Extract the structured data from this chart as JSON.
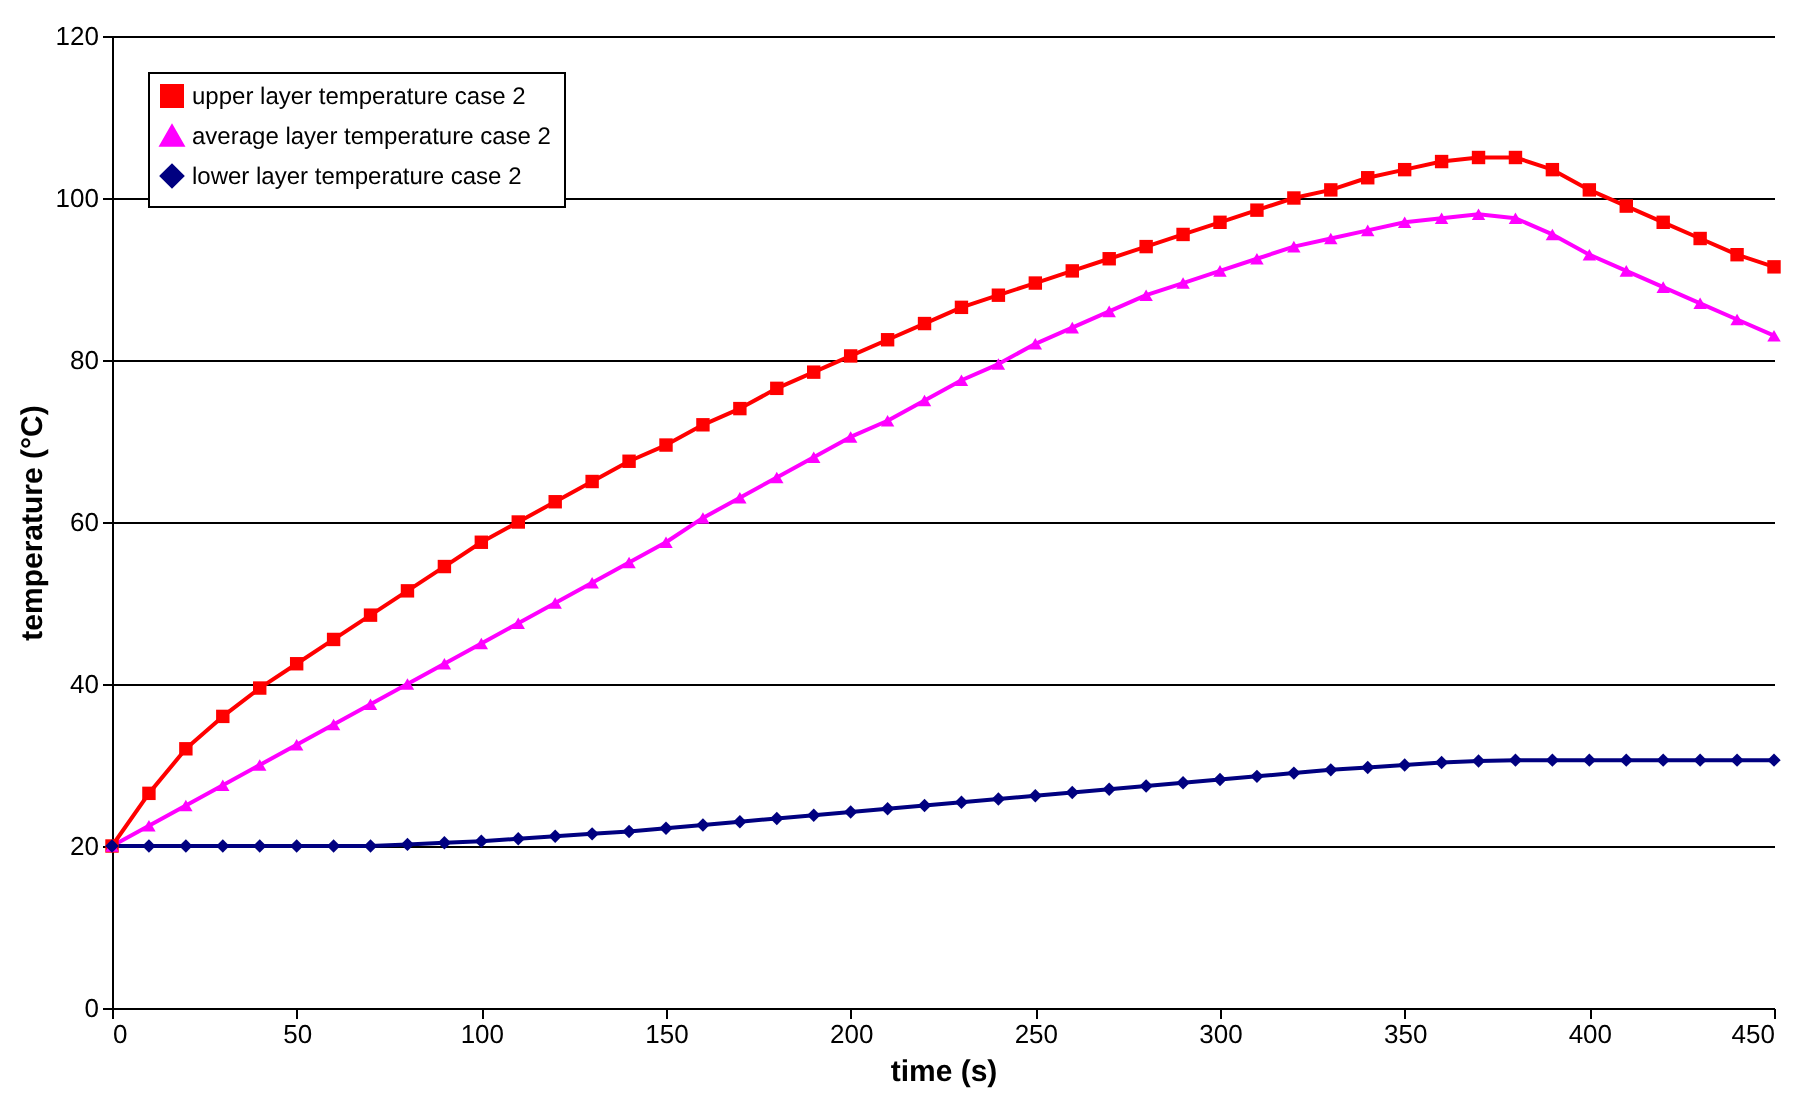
{
  "chart_data": {
    "type": "line",
    "xlabel": "time (s)",
    "ylabel": "temperature (°C)",
    "x": [
      0,
      10,
      20,
      30,
      40,
      50,
      60,
      70,
      80,
      90,
      100,
      110,
      120,
      130,
      140,
      150,
      160,
      170,
      180,
      190,
      200,
      210,
      220,
      230,
      240,
      250,
      260,
      270,
      280,
      290,
      300,
      310,
      320,
      330,
      340,
      350,
      360,
      370,
      380,
      390,
      400,
      410,
      420,
      430,
      440,
      450
    ],
    "series": [
      {
        "name": "upper layer temperature case 2",
        "color": "#ff0000",
        "marker": "square",
        "values": [
          20,
          26.5,
          32,
          36,
          39.5,
          42.5,
          45.5,
          48.5,
          51.5,
          54.5,
          57.5,
          60,
          62.5,
          65,
          67.5,
          69.5,
          72,
          74,
          76.5,
          78.5,
          80.5,
          82.5,
          84.5,
          86.5,
          88,
          89.5,
          91,
          92.5,
          94,
          95.5,
          97,
          98.5,
          100,
          101,
          102.5,
          103.5,
          104.5,
          105,
          105,
          103.5,
          101,
          99,
          97,
          95,
          93,
          91.5
        ]
      },
      {
        "name": "average layer temperature case 2",
        "color": "#ff00ff",
        "marker": "triangle",
        "values": [
          20,
          22.5,
          25,
          27.5,
          30,
          32.5,
          35,
          37.5,
          40,
          42.5,
          45,
          47.5,
          50,
          52.5,
          55,
          57.5,
          60.5,
          63,
          65.5,
          68,
          70.5,
          72.5,
          75,
          77.5,
          79.5,
          82,
          84,
          86,
          88,
          89.5,
          91,
          92.5,
          94,
          95,
          96,
          97,
          97.5,
          98,
          97.5,
          95.5,
          93,
          91,
          89,
          87,
          85,
          83
        ]
      },
      {
        "name": "lower layer temperature case 2",
        "color": "#000080",
        "marker": "diamond",
        "values": [
          20,
          20,
          20,
          20,
          20,
          20,
          20,
          20,
          20.2,
          20.4,
          20.6,
          20.9,
          21.2,
          21.5,
          21.8,
          22.2,
          22.6,
          23,
          23.4,
          23.8,
          24.2,
          24.6,
          25,
          25.4,
          25.8,
          26.2,
          26.6,
          27,
          27.4,
          27.8,
          28.2,
          28.6,
          29,
          29.4,
          29.7,
          30,
          30.3,
          30.5,
          30.6,
          30.6,
          30.6,
          30.6,
          30.6,
          30.6,
          30.6,
          30.6
        ]
      }
    ],
    "xlim": [
      0,
      450
    ],
    "xticks": [
      0,
      50,
      100,
      150,
      200,
      250,
      300,
      350,
      400,
      450
    ],
    "ylim": [
      0,
      120
    ],
    "yticks": [
      0,
      20,
      40,
      60,
      80,
      100,
      120
    ],
    "grid": "y",
    "legend": "top left",
    "line_style": "solid"
  }
}
